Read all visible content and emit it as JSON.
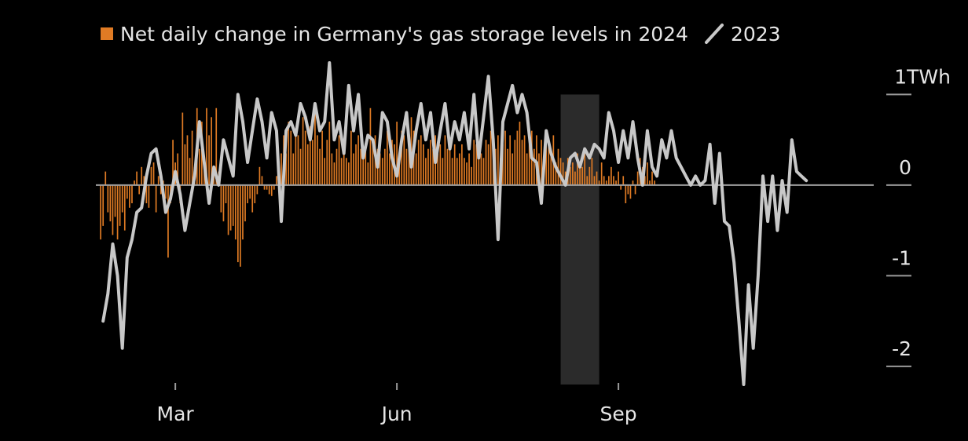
{
  "legend": {
    "bar_label": "Net daily change in Germany's gas storage levels in 2024",
    "line_label": "2023"
  },
  "chart_data": {
    "type": "bar",
    "title": "",
    "xlabel": "",
    "ylabel": "",
    "x_ticks": [
      {
        "label": "Mar",
        "day": 0
      },
      {
        "label": "Jun",
        "day": 92
      },
      {
        "label": "Sep",
        "day": 184
      }
    ],
    "y_ticks": [
      {
        "label": "1TWh",
        "value": 1
      },
      {
        "label": "0",
        "value": 0
      },
      {
        "label": "-1",
        "value": -1
      },
      {
        "label": "-2",
        "value": -2
      }
    ],
    "ylim": [
      -2.2,
      1.35
    ],
    "xlim_days": [
      -33,
      290
    ],
    "shaded_period": [
      160,
      176
    ],
    "colors": {
      "bars": "#e07b24",
      "line": "#c8c8c8",
      "shade": "#2b2b2b",
      "zero": "#a0a0a0",
      "text": "#e6e6e6"
    },
    "series": [
      {
        "name": "Net daily change in Germany's gas storage levels in 2024",
        "type": "bar",
        "start_day": -31,
        "values": [
          -0.6,
          -0.45,
          0.15,
          -0.3,
          -0.4,
          -0.55,
          -0.35,
          -0.6,
          -0.45,
          -0.3,
          -0.5,
          -0.15,
          -0.25,
          -0.2,
          0.05,
          0.15,
          -0.1,
          0.2,
          0.1,
          -0.2,
          -0.25,
          0.2,
          0.25,
          -0.3,
          0.1,
          -0.1,
          0.05,
          -0.15,
          -0.8,
          -0.2,
          0.5,
          0.25,
          0.35,
          -0.2,
          0.8,
          0.45,
          0.55,
          0.3,
          0.6,
          0.2,
          0.85,
          0.4,
          0.7,
          0.25,
          0.85,
          0.55,
          0.75,
          0.2,
          0.85,
          0.15,
          -0.3,
          -0.4,
          -0.2,
          -0.55,
          -0.5,
          -0.45,
          -0.6,
          -0.85,
          -0.9,
          -0.6,
          -0.4,
          -0.2,
          -0.15,
          -0.3,
          -0.2,
          -0.1,
          0.2,
          0.1,
          -0.05,
          -0.05,
          -0.1,
          -0.12,
          -0.05,
          0.1,
          0.2,
          0.35,
          0.55,
          0.35,
          0.7,
          0.6,
          0.35,
          0.6,
          0.55,
          0.4,
          0.75,
          0.6,
          0.45,
          0.65,
          0.5,
          0.8,
          0.55,
          0.4,
          0.6,
          0.3,
          0.5,
          0.7,
          0.35,
          0.25,
          0.4,
          0.55,
          0.3,
          0.45,
          0.3,
          0.25,
          0.6,
          0.35,
          0.45,
          0.55,
          0.4,
          0.3,
          0.45,
          0.25,
          0.85,
          0.5,
          0.55,
          0.4,
          0.35,
          0.3,
          0.4,
          0.6,
          0.35,
          0.5,
          0.45,
          0.7,
          0.35,
          0.6,
          0.55,
          0.4,
          0.45,
          0.75,
          0.6,
          0.35,
          0.5,
          0.55,
          0.45,
          0.3,
          0.4,
          0.5,
          0.4,
          0.55,
          0.35,
          0.45,
          0.3,
          0.55,
          0.4,
          0.5,
          0.3,
          0.45,
          0.3,
          0.35,
          0.45,
          0.3,
          0.25,
          0.35,
          0.2,
          0.5,
          0.45,
          0.4,
          0.35,
          0.3,
          0.5,
          0.45,
          0.6,
          0.5,
          0.4,
          0.55,
          0.3,
          0.45,
          0.6,
          0.4,
          0.55,
          0.35,
          0.5,
          0.6,
          0.7,
          0.5,
          0.55,
          0.35,
          0.45,
          0.6,
          0.4,
          0.55,
          0.35,
          0.5,
          0.3,
          0.6,
          0.45,
          0.35,
          0.55,
          0.25,
          0.4,
          0.3,
          0.25,
          0.15,
          0.3,
          0.2,
          0.25,
          0.15,
          0.35,
          0.25,
          0.2,
          0.35,
          0.1,
          0.2,
          0.3,
          0.1,
          0.15,
          0.05,
          0.25,
          0.1,
          0.05,
          0.1,
          0.2,
          0.1,
          0.05,
          0.15,
          -0.05,
          0.1,
          -0.2,
          -0.1,
          -0.15,
          0.05,
          -0.1,
          0.15,
          0.3,
          0.2,
          0.1,
          0.25,
          0.05,
          0.15,
          0.05
        ]
      },
      {
        "name": "2023",
        "type": "line",
        "points": [
          [
            -30,
            -1.5
          ],
          [
            -28,
            -1.2
          ],
          [
            -26,
            -0.65
          ],
          [
            -24,
            -1.0
          ],
          [
            -22,
            -1.8
          ],
          [
            -20,
            -0.8
          ],
          [
            -18,
            -0.6
          ],
          [
            -16,
            -0.3
          ],
          [
            -14,
            -0.25
          ],
          [
            -12,
            0.1
          ],
          [
            -10,
            0.35
          ],
          [
            -8,
            0.4
          ],
          [
            -6,
            0.1
          ],
          [
            -4,
            -0.3
          ],
          [
            -2,
            -0.15
          ],
          [
            0,
            0.15
          ],
          [
            2,
            -0.1
          ],
          [
            4,
            -0.5
          ],
          [
            6,
            -0.2
          ],
          [
            8,
            0.1
          ],
          [
            10,
            0.7
          ],
          [
            12,
            0.25
          ],
          [
            14,
            -0.2
          ],
          [
            16,
            0.2
          ],
          [
            18,
            0.0
          ],
          [
            20,
            0.5
          ],
          [
            22,
            0.3
          ],
          [
            24,
            0.1
          ],
          [
            26,
            1.0
          ],
          [
            28,
            0.7
          ],
          [
            30,
            0.25
          ],
          [
            32,
            0.6
          ],
          [
            34,
            0.95
          ],
          [
            36,
            0.7
          ],
          [
            38,
            0.3
          ],
          [
            40,
            0.8
          ],
          [
            42,
            0.6
          ],
          [
            44,
            -0.4
          ],
          [
            46,
            0.6
          ],
          [
            48,
            0.7
          ],
          [
            50,
            0.55
          ],
          [
            52,
            0.9
          ],
          [
            54,
            0.75
          ],
          [
            56,
            0.5
          ],
          [
            58,
            0.9
          ],
          [
            60,
            0.6
          ],
          [
            62,
            0.7
          ],
          [
            64,
            1.35
          ],
          [
            66,
            0.5
          ],
          [
            68,
            0.7
          ],
          [
            70,
            0.35
          ],
          [
            72,
            1.1
          ],
          [
            74,
            0.6
          ],
          [
            76,
            1.0
          ],
          [
            78,
            0.3
          ],
          [
            80,
            0.55
          ],
          [
            82,
            0.5
          ],
          [
            84,
            0.2
          ],
          [
            86,
            0.8
          ],
          [
            88,
            0.7
          ],
          [
            90,
            0.3
          ],
          [
            92,
            0.1
          ],
          [
            94,
            0.5
          ],
          [
            96,
            0.8
          ],
          [
            98,
            0.2
          ],
          [
            100,
            0.6
          ],
          [
            102,
            0.9
          ],
          [
            104,
            0.5
          ],
          [
            106,
            0.8
          ],
          [
            108,
            0.25
          ],
          [
            110,
            0.6
          ],
          [
            112,
            0.9
          ],
          [
            114,
            0.4
          ],
          [
            116,
            0.7
          ],
          [
            118,
            0.5
          ],
          [
            120,
            0.8
          ],
          [
            122,
            0.4
          ],
          [
            124,
            1.0
          ],
          [
            126,
            0.3
          ],
          [
            128,
            0.75
          ],
          [
            130,
            1.2
          ],
          [
            132,
            0.5
          ],
          [
            134,
            -0.6
          ],
          [
            136,
            0.7
          ],
          [
            138,
            0.9
          ],
          [
            140,
            1.1
          ],
          [
            142,
            0.8
          ],
          [
            144,
            1.0
          ],
          [
            146,
            0.8
          ],
          [
            148,
            0.3
          ],
          [
            150,
            0.25
          ],
          [
            152,
            -0.2
          ],
          [
            154,
            0.6
          ],
          [
            156,
            0.35
          ],
          [
            158,
            0.2
          ],
          [
            160,
            0.1
          ],
          [
            162,
            0.0
          ],
          [
            164,
            0.3
          ],
          [
            166,
            0.35
          ],
          [
            168,
            0.2
          ],
          [
            170,
            0.4
          ],
          [
            172,
            0.3
          ],
          [
            174,
            0.45
          ],
          [
            176,
            0.4
          ],
          [
            178,
            0.3
          ],
          [
            180,
            0.8
          ],
          [
            182,
            0.6
          ],
          [
            184,
            0.25
          ],
          [
            186,
            0.6
          ],
          [
            188,
            0.3
          ],
          [
            190,
            0.7
          ],
          [
            192,
            0.3
          ],
          [
            194,
            0.0
          ],
          [
            196,
            0.6
          ],
          [
            198,
            0.2
          ],
          [
            200,
            0.1
          ],
          [
            202,
            0.5
          ],
          [
            204,
            0.3
          ],
          [
            206,
            0.6
          ],
          [
            208,
            0.3
          ],
          [
            210,
            0.2
          ],
          [
            212,
            0.1
          ],
          [
            214,
            0.0
          ],
          [
            216,
            0.1
          ],
          [
            218,
            0.0
          ],
          [
            220,
            0.05
          ],
          [
            222,
            0.45
          ],
          [
            224,
            -0.2
          ],
          [
            226,
            0.35
          ],
          [
            228,
            -0.4
          ],
          [
            230,
            -0.45
          ],
          [
            232,
            -0.85
          ],
          [
            234,
            -1.5
          ],
          [
            236,
            -2.2
          ],
          [
            238,
            -1.1
          ],
          [
            240,
            -1.8
          ],
          [
            242,
            -1.0
          ],
          [
            244,
            0.1
          ],
          [
            246,
            -0.4
          ],
          [
            248,
            0.1
          ],
          [
            250,
            -0.5
          ],
          [
            252,
            0.05
          ],
          [
            254,
            -0.3
          ],
          [
            256,
            0.5
          ],
          [
            258,
            0.15
          ],
          [
            260,
            0.1
          ],
          [
            262,
            0.05
          ]
        ]
      }
    ]
  }
}
